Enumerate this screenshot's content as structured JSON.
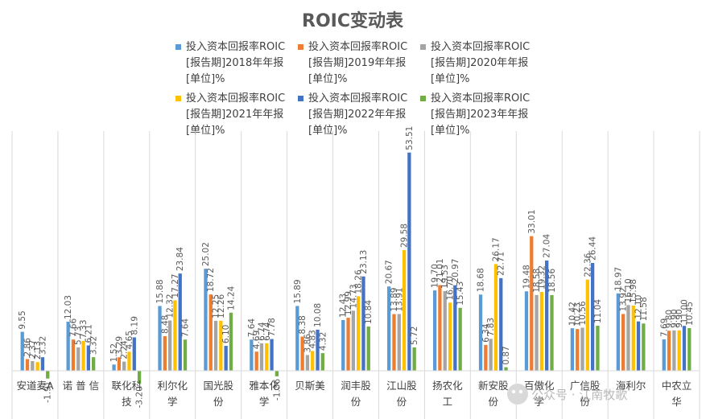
{
  "chart_data": {
    "type": "bar",
    "title": "ROIC变动表",
    "xlabel": "",
    "ylabel": "",
    "ylim": [
      -4,
      56
    ],
    "grid": false,
    "legend_position": "top",
    "categories": [
      "安道麦A",
      "诺 普 信",
      "联化科技",
      "利尔化学",
      "国光股份",
      "雅本化学",
      "贝斯美",
      "润丰股份",
      "江山股份",
      "扬农化工",
      "新安股份",
      "百傲化学",
      "广信股份",
      "海利尔",
      "中农立华"
    ],
    "series": [
      {
        "name": "投入资本回报率ROIC[报告期]2018年年报[单位]%",
        "color": "#5b9bd5",
        "values": [
          9.55,
          12.03,
          1.52,
          15.88,
          25.02,
          7.64,
          15.89,
          12.43,
          20.67,
          19.7,
          18.68,
          19.48,
          10.42,
          18.97,
          7.69
        ]
      },
      {
        "name": "投入资本回报率ROIC[报告期]2019年年报[单位]%",
        "color": "#ed7d31",
        "values": [
          2.86,
          7.66,
          3.29,
          8.48,
          18.72,
          4.69,
          8.38,
          12.99,
          13.89,
          21.01,
          6.34,
          33.01,
          10.23,
          13.92,
          9.8
        ]
      },
      {
        "name": "投入资本回报率ROIC[报告期]2020年年报[单位]%",
        "color": "#a5a5a5",
        "values": [
          2.37,
          5.73,
          2.24,
          12.32,
          12.25,
          6.74,
          3.86,
          14.73,
          13.91,
          19.53,
          7.83,
          18.58,
          10.56,
          16.1,
          9.9
        ]
      },
      {
        "name": "投入资本回报率ROIC[报告期]2021年年报[单位]%",
        "color": "#ffc000",
        "values": [
          2.13,
          7.33,
          4.65,
          17.27,
          12.26,
          6.74,
          4.83,
          18.26,
          29.58,
          16.7,
          26.17,
          19.32,
          22.36,
          15.98,
          9.9
        ]
      },
      {
        "name": "投入资本回报率ROIC[报告期]2022年年报[单位]%",
        "color": "#4472c4",
        "values": [
          3.32,
          6.21,
          8.19,
          23.84,
          6.1,
          7.78,
          10.08,
          23.13,
          53.51,
          20.97,
          22.71,
          27.04,
          26.44,
          12.1,
          11.0
        ]
      },
      {
        "name": "投入资本回报率ROIC[报告期]2023年年报[单位]%",
        "color": "#70ad47",
        "values": [
          -1.91,
          3.32,
          -3.2,
          7.64,
          14.24,
          -1.36,
          4.32,
          10.84,
          5.72,
          15.43,
          0.87,
          18.56,
          11.04,
          11.58,
          10.45
        ]
      }
    ]
  },
  "legend": {
    "items": [
      {
        "lines": [
          "投入资本回报率ROIC",
          "[报告期]2018年年报",
          "[单位]%"
        ],
        "color": "#5b9bd5"
      },
      {
        "lines": [
          "投入资本回报率ROIC",
          "[报告期]2019年年报",
          "[单位]%"
        ],
        "color": "#ed7d31"
      },
      {
        "lines": [
          "投入资本回报率ROIC",
          "[报告期]2020年年报",
          "[单位]%"
        ],
        "color": "#a5a5a5"
      },
      {
        "lines": [
          "投入资本回报率ROIC",
          "[报告期]2021年年报",
          "[单位]%"
        ],
        "color": "#ffc000"
      },
      {
        "lines": [
          "投入资本回报率ROIC",
          "[报告期]2022年年报",
          "[单位]%"
        ],
        "color": "#4472c4"
      },
      {
        "lines": [
          "投入资本回报率ROIC",
          "[报告期]2023年年报",
          "[单位]%"
        ],
        "color": "#70ad47"
      }
    ]
  },
  "category_label_lines": [
    [
      "安道麦A"
    ],
    [
      "诺 普 信"
    ],
    [
      "联化科",
      "技"
    ],
    [
      "利尔化",
      "学"
    ],
    [
      "国光股",
      "份"
    ],
    [
      "雅本化",
      "学"
    ],
    [
      "贝斯美"
    ],
    [
      "润丰股",
      "份"
    ],
    [
      "江山股",
      "份"
    ],
    [
      "扬农化",
      "工"
    ],
    [
      "新安股",
      "份"
    ],
    [
      "百傲化",
      "学"
    ],
    [
      "广信股",
      "份"
    ],
    [
      "海利尔"
    ],
    [
      "中农立",
      "华"
    ]
  ],
  "watermark": {
    "text": "公众号 · 江南牧歌",
    "icon": "wechat-icon"
  }
}
